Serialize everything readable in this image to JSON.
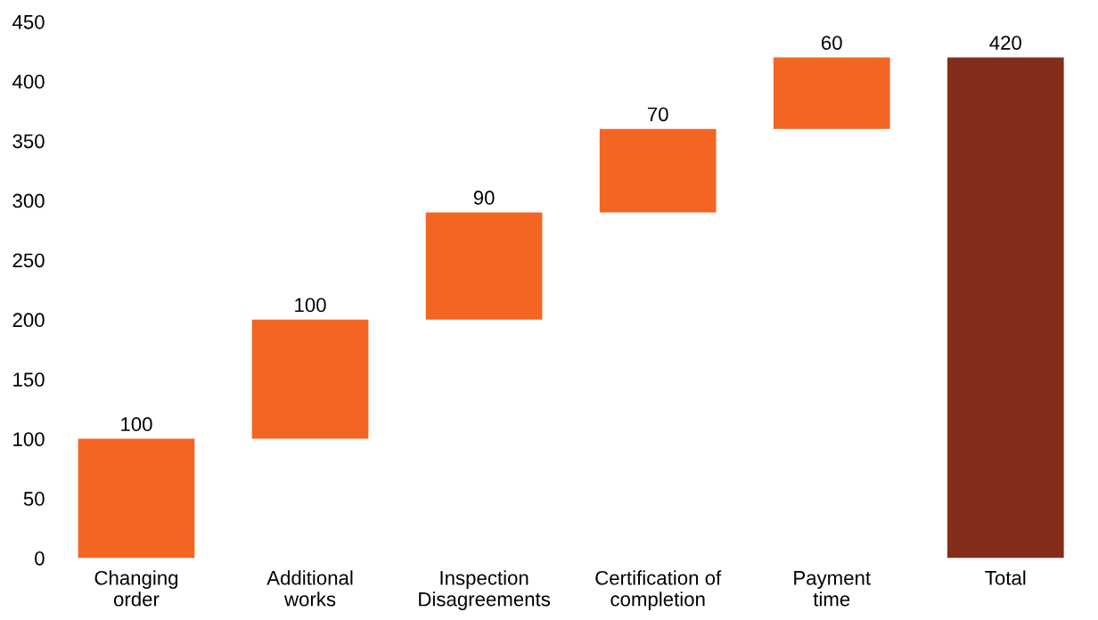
{
  "chart_data": {
    "type": "bar",
    "categories": [
      "Changing\norder",
      "Additional\nworks",
      "Inspection\nDisagreements",
      "Certification of\ncompletion",
      "Payment\ntime",
      "Total"
    ],
    "values": [
      100,
      100,
      90,
      70,
      60,
      420
    ],
    "base": [
      0,
      100,
      200,
      290,
      360,
      0
    ],
    "colors": [
      "#f26522",
      "#f26522",
      "#f26522",
      "#f26522",
      "#f26522",
      "#842d1a"
    ],
    "ylim": [
      0,
      450
    ],
    "yticks": [
      0,
      50,
      100,
      150,
      200,
      250,
      300,
      350,
      400,
      450
    ],
    "data_labels": true,
    "grid": false,
    "legend": false
  }
}
